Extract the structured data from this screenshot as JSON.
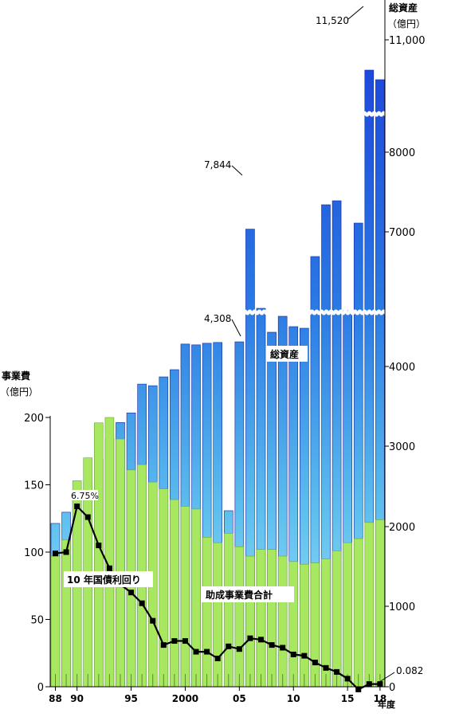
{
  "chart_data": {
    "type": "bar",
    "x_ticks": [
      {
        "label": "88",
        "year": 1988
      },
      {
        "label": "90",
        "year": 1990
      },
      {
        "label": "95",
        "year": 1995
      },
      {
        "label": "2000",
        "year": 2000
      },
      {
        "label": "05",
        "year": 2005
      },
      {
        "label": "10",
        "year": 2010
      },
      {
        "label": "15",
        "year": 2015
      },
      {
        "label": "18",
        "year": 2018
      }
    ],
    "x_unit": "年度",
    "years": [
      1988,
      1989,
      1990,
      1991,
      1992,
      1993,
      1994,
      1995,
      1996,
      1997,
      1998,
      1999,
      2000,
      2001,
      2002,
      2003,
      2004,
      2005,
      2006,
      2007,
      2008,
      2009,
      2010,
      2011,
      2012,
      2013,
      2014,
      2015,
      2016,
      2017,
      2018
    ],
    "left_axis": {
      "title": "事業費",
      "unit": "（億円）",
      "ticks": [
        0,
        50,
        100,
        150,
        200
      ],
      "range": [
        0,
        200
      ]
    },
    "right_axis": {
      "title": "総資産",
      "unit": "（億円）",
      "tick_labels": [
        "0",
        "1000",
        "2000",
        "3000",
        "4000",
        "7000",
        "8000",
        "11,000"
      ],
      "breaks": [
        "4308-6800",
        "8200-11000"
      ]
    },
    "series": [
      {
        "name": "総資産",
        "axis": "right",
        "style": "blue-gradient-bar",
        "values": [
          2040,
          2180,
          2340,
          2560,
          2840,
          3100,
          3300,
          3420,
          3780,
          3760,
          3870,
          3960,
          4280,
          4270,
          4290,
          4300,
          4310,
          4308,
          7844,
          6850,
          6550,
          6750,
          6620,
          6600,
          7500,
          8150,
          8200,
          8500,
          9600,
          11520,
          11400
        ]
      },
      {
        "name": "助成事業費合計",
        "axis": "left",
        "style": "green-bar",
        "values": [
          97,
          109,
          153,
          170,
          196,
          200,
          184,
          161,
          165,
          152,
          147,
          139,
          134,
          132,
          111,
          107,
          114,
          104,
          97,
          102,
          102,
          97,
          93,
          91,
          92,
          95,
          101,
          107,
          110,
          122,
          124
        ]
      },
      {
        "name": "10 年国債利回り",
        "axis": "left",
        "style": "black-line-square-markers",
        "values": [
          99,
          100,
          134,
          126,
          105,
          88,
          76,
          70,
          62,
          49,
          31,
          34,
          34,
          26,
          26,
          21,
          30,
          28,
          36,
          35,
          31,
          29,
          24,
          23,
          18,
          14,
          11,
          6,
          -2,
          2,
          2
        ]
      }
    ],
    "annotations": [
      {
        "text": "7,844",
        "series": "総資産",
        "year": 2006
      },
      {
        "text": "4,308",
        "series": "総資産",
        "year": 2005
      },
      {
        "text": "11,520",
        "series": "総資産",
        "year": 2017
      },
      {
        "text": "6.75%",
        "series": "10 年国債利回り",
        "year": 1990
      },
      {
        "text": "0.082",
        "series": "10 年国債利回り",
        "year": 2018
      }
    ],
    "series_labels": [
      {
        "text": "総資産"
      },
      {
        "text": "助成事業費合計"
      },
      {
        "text": "10 年国債利回り"
      }
    ],
    "colors": {
      "asset_top": "#1a3ad8",
      "asset_mid": "#2a8ae8",
      "asset_bottom": "#8ed8f4",
      "grant": "#a8e860",
      "grant_edge": "#6aa43a",
      "yield_line": "#000000"
    }
  }
}
